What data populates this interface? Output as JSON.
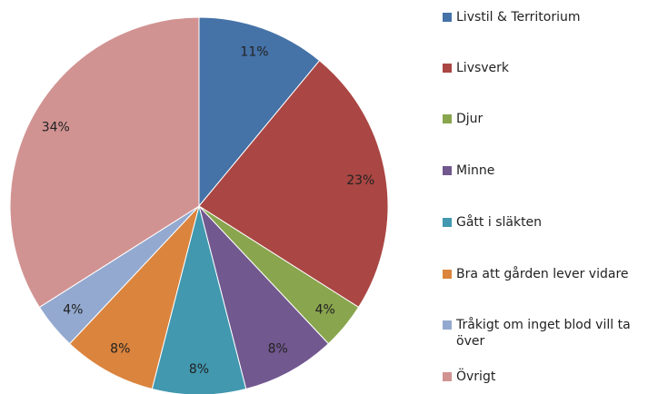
{
  "chart_data": {
    "type": "pie",
    "categories": [
      "Livstil & Territorium",
      "Livsverk",
      "Djur",
      "Minne",
      "Gått i släkten",
      "Bra att gården lever vidare",
      "Tråkigt om inget blod vill ta över",
      "Övrigt"
    ],
    "values": [
      11,
      23,
      4,
      8,
      8,
      8,
      4,
      34
    ],
    "value_labels": [
      "11%",
      "23%",
      "4%",
      "8%",
      "8%",
      "8%",
      "4%",
      "34%"
    ],
    "colors": [
      "#4572a7",
      "#aa4643",
      "#89a54e",
      "#71588f",
      "#4198af",
      "#db843d",
      "#93a9cf",
      "#d19392"
    ],
    "legend": "right"
  }
}
